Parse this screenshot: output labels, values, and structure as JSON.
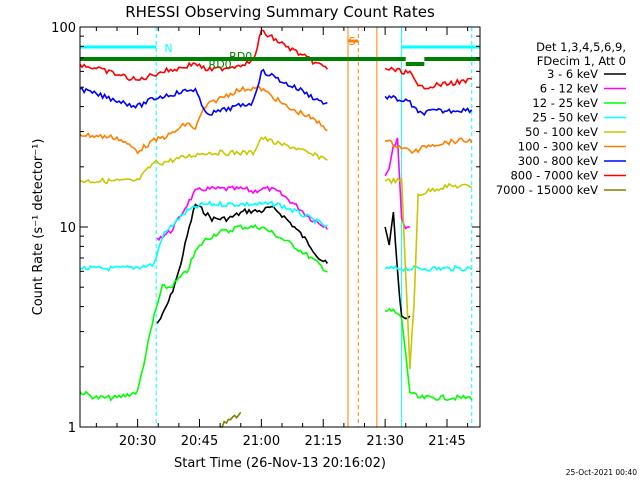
{
  "chart_data": {
    "type": "line",
    "title": "RHESSI Observing Summary Count Rates",
    "xlabel": "Start Time (26-Nov-13 20:16:02)",
    "ylabel": "Count Rate (s⁻¹ detector⁻¹)",
    "yscale": "log",
    "ylim": [
      1,
      100
    ],
    "xlim": [
      "20:16:02",
      "21:53:00"
    ],
    "x_ticks": [
      "20:30",
      "20:45",
      "21:00",
      "21:15",
      "21:30",
      "21:45"
    ],
    "y_ticks": [
      "1",
      "10",
      "100"
    ],
    "grid": false,
    "legend_position": "right",
    "legend_header": [
      "Det 1,3,4,5,6,9,",
      "FDecim 1, Att 0"
    ],
    "timestamp": "25-Oct-2021 00:40",
    "annotations": [
      {
        "text": "N",
        "color": "#00ffff"
      },
      {
        "text": "RD0",
        "color": "#008000"
      },
      {
        "text": "RD0",
        "color": "#008000"
      },
      {
        "text": "S",
        "color": "#ff8000"
      }
    ],
    "markers": {
      "night_lines": [
        "20:16:02",
        "20:34:30",
        "21:34:00",
        "21:51:00"
      ],
      "saa_lines": [
        "21:21:00",
        "21:23:30",
        "21:28:00"
      ]
    },
    "series": [
      {
        "name": "3 - 6 keV",
        "color": "#000000",
        "x": [
          "20:34:45",
          "20:36",
          "20:38",
          "20:40",
          "20:42",
          "20:44",
          "20:46",
          "20:48",
          "20:50",
          "20:52",
          "20:54",
          "20:56",
          "20:58",
          "21:00",
          "21:02",
          "21:04",
          "21:06",
          "21:08",
          "21:10",
          "21:12",
          "21:14",
          "21:16",
          "21:30",
          "21:31",
          "21:32",
          "21:33",
          "21:34",
          "21:35",
          "21:36"
        ],
        "y": [
          3.3,
          3.6,
          4.5,
          6.0,
          9.0,
          13.0,
          12.0,
          11.0,
          11.0,
          11.0,
          11.5,
          12.0,
          12.0,
          12.0,
          12.5,
          12.0,
          11.0,
          10.0,
          9.0,
          8.0,
          7.0,
          6.5,
          10.0,
          8.0,
          12.0,
          6.0,
          3.5,
          3.5,
          3.5
        ]
      },
      {
        "name": "6 - 12 keV",
        "color": "#ff00ff",
        "x": [
          "20:34:45",
          "20:36",
          "20:38",
          "20:40",
          "20:42",
          "20:44",
          "20:46",
          "20:48",
          "20:50",
          "20:52",
          "20:54",
          "20:56",
          "20:58",
          "21:00",
          "21:02",
          "21:04",
          "21:06",
          "21:08",
          "21:10",
          "21:12",
          "21:14",
          "21:16",
          "21:30",
          "21:31",
          "21:32",
          "21:33",
          "21:34",
          "21:35",
          "21:36"
        ],
        "y": [
          8.8,
          9.0,
          9.5,
          11.0,
          13.0,
          15.0,
          15.5,
          15.5,
          15.5,
          15.5,
          15.5,
          15.5,
          15.0,
          15.5,
          15.5,
          15.0,
          14.0,
          13.0,
          12.0,
          11.0,
          10.5,
          10.0,
          18.0,
          20.0,
          25.0,
          28.0,
          11.0,
          10.0,
          10.0
        ]
      },
      {
        "name": "12 - 25 keV",
        "color": "#00ff00",
        "x": [
          "20:16:02",
          "20:20",
          "20:25",
          "20:30",
          "20:34",
          "20:36",
          "20:38",
          "20:40",
          "20:42",
          "20:44",
          "20:46",
          "20:48",
          "20:50",
          "20:52",
          "20:54",
          "20:56",
          "20:58",
          "21:00",
          "21:02",
          "21:04",
          "21:06",
          "21:08",
          "21:10",
          "21:12",
          "21:14",
          "21:16",
          "21:30",
          "21:32",
          "21:34",
          "21:36",
          "21:38",
          "21:40",
          "21:42",
          "21:45",
          "21:48",
          "21:51"
        ],
        "y": [
          1.5,
          1.4,
          1.4,
          1.5,
          3.6,
          5.0,
          5.0,
          5.5,
          6.0,
          7.5,
          8.5,
          9.0,
          9.5,
          9.5,
          10.0,
          10.0,
          10.0,
          10.0,
          9.5,
          9.0,
          8.5,
          8.0,
          7.5,
          7.0,
          6.5,
          6.0,
          3.8,
          3.8,
          3.5,
          1.5,
          1.4,
          1.4,
          1.4,
          1.4,
          1.4,
          1.4
        ]
      },
      {
        "name": "25 - 50 keV",
        "color": "#00ffff",
        "x": [
          "20:16:02",
          "20:20",
          "20:25",
          "20:30",
          "20:34",
          "20:36",
          "20:38",
          "20:40",
          "20:42",
          "20:44",
          "20:46",
          "20:48",
          "20:50",
          "20:52",
          "20:54",
          "20:56",
          "20:58",
          "21:00",
          "21:02",
          "21:04",
          "21:06",
          "21:08",
          "21:10",
          "21:12",
          "21:14",
          "21:16",
          "21:30",
          "21:32",
          "21:34",
          "21:36",
          "21:38",
          "21:40",
          "21:42",
          "21:45",
          "21:48",
          "21:51"
        ],
        "y": [
          6.2,
          6.2,
          6.2,
          6.3,
          6.5,
          9.0,
          10.0,
          11.0,
          12.0,
          12.5,
          13.0,
          13.0,
          13.0,
          13.0,
          13.0,
          13.0,
          13.0,
          13.0,
          13.0,
          13.0,
          12.5,
          12.0,
          11.5,
          11.0,
          10.5,
          10.0,
          6.2,
          6.2,
          6.2,
          6.2,
          6.2,
          6.2,
          6.2,
          6.2,
          6.2,
          6.2
        ]
      },
      {
        "name": "50 - 100 keV",
        "color": "#c8c800",
        "x": [
          "20:16:02",
          "20:20",
          "20:25",
          "20:30",
          "20:34",
          "20:36",
          "20:38",
          "20:40",
          "20:42",
          "20:44",
          "20:46",
          "20:48",
          "20:50",
          "20:52",
          "20:54",
          "20:56",
          "20:58",
          "21:00",
          "21:02",
          "21:04",
          "21:06",
          "21:08",
          "21:10",
          "21:12",
          "21:14",
          "21:16",
          "21:30",
          "21:32",
          "21:34",
          "21:36",
          "21:37",
          "21:38",
          "21:40",
          "21:42",
          "21:45",
          "21:48",
          "21:51"
        ],
        "y": [
          17.0,
          17.0,
          17.0,
          17.0,
          21.0,
          21.0,
          21.5,
          22.0,
          22.5,
          23.0,
          23.5,
          23.5,
          23.5,
          23.5,
          23.5,
          23.5,
          23.5,
          28.0,
          27.0,
          26.0,
          25.5,
          25.0,
          24.0,
          23.0,
          22.5,
          22.0,
          17.0,
          17.0,
          17.0,
          2.0,
          4.0,
          14.5,
          15.0,
          15.5,
          16.0,
          16.0,
          16.0
        ]
      },
      {
        "name": "100 - 300 keV",
        "color": "#ff8000",
        "x": [
          "20:16:02",
          "20:20",
          "20:25",
          "20:30",
          "20:34",
          "20:36",
          "20:38",
          "20:40",
          "20:42",
          "20:44",
          "20:46",
          "20:48",
          "20:50",
          "20:52",
          "20:54",
          "20:56",
          "20:58",
          "21:00",
          "21:02",
          "21:04",
          "21:06",
          "21:08",
          "21:10",
          "21:12",
          "21:14",
          "21:16",
          "21:30",
          "21:32",
          "21:34",
          "21:36",
          "21:38",
          "21:40",
          "21:42",
          "21:45",
          "21:48",
          "21:51"
        ],
        "y": [
          29.0,
          28.5,
          28.0,
          24.0,
          27.0,
          28.0,
          29.0,
          31.0,
          33.0,
          31.0,
          39.0,
          42.0,
          44.0,
          46.0,
          48.0,
          49.0,
          49.5,
          49.0,
          46.0,
          43.0,
          40.0,
          38.0,
          37.0,
          35.0,
          33.0,
          31.0,
          27.0,
          26.0,
          25.0,
          24.0,
          24.0,
          25.5,
          26.0,
          26.5,
          27.0,
          27.0
        ]
      },
      {
        "name": "300 - 800 keV",
        "color": "#0000ff",
        "x": [
          "20:16:02",
          "20:20",
          "20:25",
          "20:30",
          "20:34",
          "20:36",
          "20:38",
          "20:40",
          "20:42",
          "20:44",
          "20:46",
          "20:48",
          "20:50",
          "20:52",
          "20:54",
          "20:56",
          "20:58",
          "21:00",
          "21:02",
          "21:04",
          "21:06",
          "21:08",
          "21:10",
          "21:12",
          "21:14",
          "21:16",
          "21:30",
          "21:32",
          "21:34",
          "21:36",
          "21:38",
          "21:40",
          "21:42",
          "21:45",
          "21:48",
          "21:51"
        ],
        "y": [
          49.0,
          46.0,
          43.0,
          40.0,
          44.0,
          45.0,
          46.0,
          47.0,
          48.0,
          49.0,
          38.0,
          37.0,
          38.0,
          39.0,
          40.0,
          41.0,
          42.0,
          60.0,
          58.0,
          55.0,
          52.0,
          50.0,
          48.0,
          45.0,
          43.0,
          41.0,
          45.0,
          44.0,
          43.0,
          42.0,
          37.0,
          37.5,
          38.0,
          38.0,
          38.5,
          38.5
        ]
      },
      {
        "name": "800 - 7000 keV",
        "color": "#ff0000",
        "x": [
          "20:16:02",
          "20:20",
          "20:25",
          "20:30",
          "20:34",
          "20:36",
          "20:38",
          "20:40",
          "20:42",
          "20:44",
          "20:46",
          "20:48",
          "20:50",
          "20:52",
          "20:54",
          "20:56",
          "20:58",
          "21:00",
          "21:02",
          "21:04",
          "21:06",
          "21:08",
          "21:10",
          "21:12",
          "21:14",
          "21:16",
          "21:30",
          "21:32",
          "21:34",
          "21:36",
          "21:38",
          "21:40",
          "21:42",
          "21:45",
          "21:48",
          "21:51"
        ],
        "y": [
          65.0,
          62.0,
          58.0,
          54.0,
          58.0,
          60.0,
          61.0,
          62.0,
          64.0,
          66.0,
          62.0,
          61.0,
          62.0,
          63.0,
          64.0,
          66.0,
          67.0,
          95.0,
          90.0,
          85.0,
          80.0,
          76.0,
          72.0,
          68.0,
          65.0,
          62.0,
          62.0,
          61.0,
          60.0,
          59.0,
          50.0,
          50.5,
          51.0,
          52.0,
          53.0,
          54.0
        ]
      },
      {
        "name": "7000 - 15000 keV",
        "color": "#808000",
        "x": [
          "20:16:02",
          "20:30",
          "20:50",
          "20:55",
          "21:15",
          "21:30",
          "21:51"
        ],
        "y": [
          1.0,
          1.0,
          1.0,
          1.18,
          1.0,
          1.0,
          1.0
        ]
      }
    ]
  }
}
